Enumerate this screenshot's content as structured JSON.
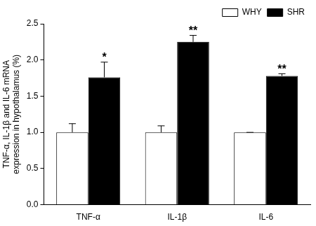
{
  "chart_data": {
    "type": "bar",
    "y_label": [
      "TNF-α, IL-1β and IL-6 mRNA",
      "expression in hypothalamus (%)"
    ],
    "categories": [
      "TNF-α",
      "IL-1β",
      "IL-6"
    ],
    "series": [
      {
        "name": "WHY",
        "color": "#ffffff",
        "values": [
          1.0,
          1.0,
          1.0
        ],
        "errors": [
          0.12,
          0.09,
          0.0
        ]
      },
      {
        "name": "SHR",
        "color": "#000000",
        "values": [
          1.76,
          2.25,
          1.78
        ],
        "errors": [
          0.21,
          0.09,
          0.03
        ]
      }
    ],
    "annotations": [
      {
        "category": "TNF-α",
        "series": "SHR",
        "text": "*"
      },
      {
        "category": "IL-1β",
        "series": "SHR",
        "text": "**"
      },
      {
        "category": "IL-6",
        "series": "SHR",
        "text": "**"
      }
    ],
    "ylim": [
      0,
      2.5
    ],
    "yticks": [
      {
        "value": 0,
        "label": "0.0"
      },
      0.5,
      {
        "value": 1,
        "label": "1.0"
      },
      1.5,
      {
        "value": 2,
        "label": "2.0"
      },
      2.5
    ],
    "grid": false,
    "legend": "upper right"
  }
}
